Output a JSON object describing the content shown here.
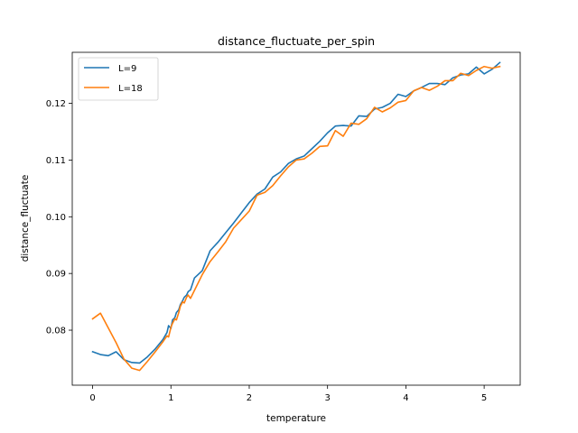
{
  "chart_data": {
    "type": "line",
    "title": "distance_fluctuate_per_spin",
    "xlabel": "temperature",
    "ylabel": "distance_fluctuate",
    "xlim": [
      -0.26,
      5.46
    ],
    "ylim": [
      0.0703,
      0.129
    ],
    "xticks": [
      0,
      1,
      2,
      3,
      4,
      5
    ],
    "xtick_labels": [
      "0",
      "1",
      "2",
      "3",
      "4",
      "5"
    ],
    "yticks": [
      0.08,
      0.09,
      0.1,
      0.11,
      0.12
    ],
    "ytick_labels": [
      "0.08",
      "0.09",
      "0.10",
      "0.11",
      "0.12"
    ],
    "grid": false,
    "legend_position": "top-left",
    "series": [
      {
        "name": "L=9",
        "color": "#1f77b4",
        "x": [
          0.0,
          0.1,
          0.2,
          0.3,
          0.4,
          0.5,
          0.6,
          0.7,
          0.8,
          0.9,
          0.95,
          0.97,
          1.0,
          1.02,
          1.05,
          1.07,
          1.1,
          1.12,
          1.15,
          1.17,
          1.2,
          1.22,
          1.25,
          1.3,
          1.4,
          1.5,
          1.6,
          1.7,
          1.8,
          1.9,
          2.0,
          2.1,
          2.2,
          2.3,
          2.4,
          2.5,
          2.6,
          2.7,
          2.8,
          2.9,
          3.0,
          3.1,
          3.2,
          3.3,
          3.4,
          3.5,
          3.6,
          3.7,
          3.8,
          3.9,
          4.0,
          4.1,
          4.2,
          4.3,
          4.4,
          4.5,
          4.6,
          4.7,
          4.8,
          4.9,
          5.0,
          5.1,
          5.2
        ],
        "y": [
          0.0762,
          0.0757,
          0.0755,
          0.0762,
          0.0748,
          0.0743,
          0.0742,
          0.0753,
          0.0767,
          0.0784,
          0.0796,
          0.0808,
          0.0803,
          0.0818,
          0.0822,
          0.0831,
          0.0836,
          0.0845,
          0.0852,
          0.0858,
          0.0862,
          0.0868,
          0.0871,
          0.0892,
          0.0905,
          0.094,
          0.0955,
          0.0972,
          0.0989,
          0.1007,
          0.1025,
          0.104,
          0.1049,
          0.107,
          0.1079,
          0.1094,
          0.1102,
          0.1107,
          0.112,
          0.1133,
          0.1148,
          0.116,
          0.1161,
          0.116,
          0.1178,
          0.1177,
          0.119,
          0.1193,
          0.12,
          0.1216,
          0.1212,
          0.1222,
          0.1228,
          0.1235,
          0.1235,
          0.1233,
          0.1245,
          0.125,
          0.1252,
          0.1264,
          0.1252,
          0.126,
          0.1272
        ]
      },
      {
        "name": "L=18",
        "color": "#ff7f0e",
        "x": [
          0.0,
          0.1,
          0.2,
          0.3,
          0.4,
          0.5,
          0.6,
          0.7,
          0.8,
          0.9,
          0.95,
          0.97,
          1.0,
          1.02,
          1.05,
          1.07,
          1.1,
          1.12,
          1.15,
          1.17,
          1.2,
          1.22,
          1.25,
          1.3,
          1.4,
          1.5,
          1.6,
          1.7,
          1.8,
          1.9,
          2.0,
          2.1,
          2.2,
          2.3,
          2.4,
          2.5,
          2.6,
          2.7,
          2.8,
          2.9,
          3.0,
          3.1,
          3.2,
          3.3,
          3.4,
          3.5,
          3.6,
          3.7,
          3.8,
          3.9,
          4.0,
          4.1,
          4.2,
          4.3,
          4.4,
          4.5,
          4.6,
          4.7,
          4.8,
          4.9,
          5.0,
          5.1,
          5.2
        ],
        "y": [
          0.082,
          0.083,
          0.0804,
          0.0778,
          0.0749,
          0.0733,
          0.0729,
          0.0745,
          0.0762,
          0.078,
          0.079,
          0.0788,
          0.0805,
          0.0812,
          0.082,
          0.0818,
          0.0831,
          0.0842,
          0.085,
          0.0848,
          0.0858,
          0.0862,
          0.0856,
          0.087,
          0.0898,
          0.0921,
          0.0938,
          0.0956,
          0.098,
          0.0995,
          0.101,
          0.1038,
          0.1043,
          0.1055,
          0.1072,
          0.1088,
          0.11,
          0.1102,
          0.1112,
          0.1124,
          0.1125,
          0.1152,
          0.1142,
          0.1165,
          0.1163,
          0.1173,
          0.1193,
          0.1185,
          0.1192,
          0.1202,
          0.1205,
          0.1222,
          0.1228,
          0.1223,
          0.123,
          0.124,
          0.124,
          0.1253,
          0.1249,
          0.1258,
          0.1265,
          0.1262,
          0.1265
        ]
      }
    ]
  }
}
